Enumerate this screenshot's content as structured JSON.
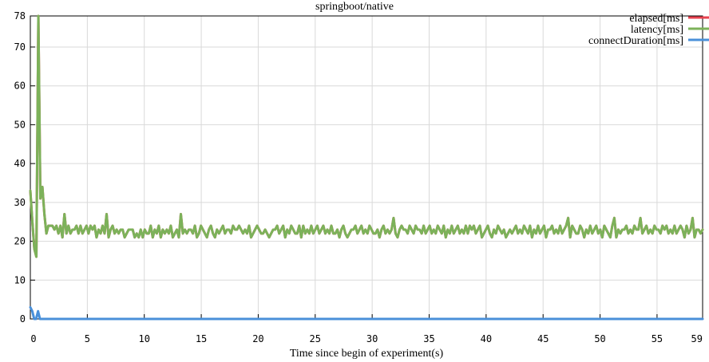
{
  "chart_data": {
    "type": "line",
    "title": "springboot/native",
    "xlabel": "Time since begin of experiment(s)",
    "ylabel": "",
    "xlim": [
      0,
      59
    ],
    "ylim": [
      0,
      78
    ],
    "x_ticks": [
      0,
      5,
      10,
      15,
      20,
      25,
      30,
      35,
      40,
      45,
      50,
      55,
      59
    ],
    "y_ticks": [
      0,
      10,
      20,
      30,
      40,
      50,
      60,
      70,
      78
    ],
    "grid": true,
    "legend_position": "top-right",
    "series": [
      {
        "name": "elapsed[ms]",
        "color": "#e8424f",
        "values": [
          33,
          25,
          18,
          16,
          78,
          31,
          34,
          27,
          22,
          24,
          24,
          24,
          23,
          24,
          22,
          24,
          21,
          27,
          22,
          24,
          22,
          23,
          23,
          24,
          22,
          24,
          22,
          23,
          24,
          22,
          24,
          23,
          24,
          21,
          23,
          22,
          24,
          22,
          27,
          21,
          23,
          24,
          22,
          23,
          22,
          23,
          23,
          21,
          22,
          23,
          23,
          23,
          21,
          22,
          21,
          23,
          21,
          23,
          22,
          22,
          24,
          21,
          23,
          22,
          24,
          21,
          23,
          22,
          23,
          22,
          24,
          21,
          22,
          23,
          21,
          27,
          22,
          23,
          22,
          23,
          23,
          22,
          24,
          21,
          22,
          24,
          23,
          22,
          21,
          23,
          24,
          22,
          21,
          23,
          22,
          23,
          24,
          22,
          23,
          23,
          22,
          24,
          23,
          23,
          24,
          23,
          22,
          23,
          22,
          24,
          21,
          22,
          23,
          24,
          23,
          22,
          22,
          23,
          22,
          21,
          22,
          23,
          23,
          24,
          22,
          23,
          24,
          21,
          23,
          22,
          24,
          23,
          22,
          22,
          24,
          21,
          24,
          22,
          23,
          22,
          24,
          22,
          23,
          24,
          22,
          23,
          24,
          22,
          23,
          22,
          24,
          22,
          22,
          23,
          21,
          23,
          24,
          22,
          21,
          22,
          23,
          23,
          24,
          22,
          23,
          24,
          22,
          23,
          22,
          24,
          23,
          22,
          22,
          23,
          21,
          23,
          24,
          22,
          23,
          22,
          23,
          26,
          22,
          21,
          23,
          24,
          23,
          23,
          22,
          24,
          23,
          22,
          24,
          23,
          23,
          22,
          24,
          22,
          23,
          24,
          22,
          23,
          22,
          24,
          23,
          22,
          24,
          21,
          23,
          22,
          24,
          22,
          23,
          24,
          22,
          23,
          22,
          24,
          22,
          24,
          23,
          24,
          22,
          23,
          24,
          21,
          22,
          23,
          24,
          22,
          21,
          23,
          22,
          24,
          23,
          22,
          23,
          21,
          22,
          23,
          22,
          23,
          24,
          22,
          23,
          22,
          24,
          23,
          22,
          24,
          21,
          23,
          22,
          24,
          22,
          23,
          24,
          21,
          23,
          23,
          24,
          22,
          23,
          22,
          24,
          22,
          23,
          24,
          26,
          21,
          24,
          23,
          22,
          22,
          24,
          23,
          21,
          23,
          22,
          24,
          22,
          23,
          24,
          22,
          23,
          21,
          24,
          23,
          22,
          21,
          24,
          26,
          21,
          23,
          22,
          23,
          23,
          24,
          22,
          23,
          22,
          24,
          23,
          23,
          26,
          22,
          23,
          24,
          22,
          23,
          22,
          24,
          23,
          23,
          22,
          24,
          23,
          24,
          22,
          23,
          22,
          24,
          22,
          23,
          24,
          23,
          21,
          24,
          22,
          23,
          26,
          21,
          23,
          23,
          22,
          23
        ]
      },
      {
        "name": "latency[ms]",
        "color": "#7cb25a",
        "values": [
          33,
          25,
          18,
          16,
          78,
          31,
          34,
          27,
          22,
          24,
          24,
          24,
          23,
          24,
          22,
          24,
          21,
          27,
          22,
          24,
          22,
          23,
          23,
          24,
          22,
          24,
          22,
          23,
          24,
          22,
          24,
          23,
          24,
          21,
          23,
          22,
          24,
          22,
          27,
          21,
          23,
          24,
          22,
          23,
          22,
          23,
          23,
          21,
          22,
          23,
          23,
          23,
          21,
          22,
          21,
          23,
          21,
          23,
          22,
          22,
          24,
          21,
          23,
          22,
          24,
          21,
          23,
          22,
          23,
          22,
          24,
          21,
          22,
          23,
          21,
          27,
          22,
          23,
          22,
          23,
          23,
          22,
          24,
          21,
          22,
          24,
          23,
          22,
          21,
          23,
          24,
          22,
          21,
          23,
          22,
          23,
          24,
          22,
          23,
          23,
          22,
          24,
          23,
          23,
          24,
          23,
          22,
          23,
          22,
          24,
          21,
          22,
          23,
          24,
          23,
          22,
          22,
          23,
          22,
          21,
          22,
          23,
          23,
          24,
          22,
          23,
          24,
          21,
          23,
          22,
          24,
          23,
          22,
          22,
          24,
          21,
          24,
          22,
          23,
          22,
          24,
          22,
          23,
          24,
          22,
          23,
          24,
          22,
          23,
          22,
          24,
          22,
          22,
          23,
          21,
          23,
          24,
          22,
          21,
          22,
          23,
          23,
          24,
          22,
          23,
          24,
          22,
          23,
          22,
          24,
          23,
          22,
          22,
          23,
          21,
          23,
          24,
          22,
          23,
          22,
          23,
          26,
          22,
          21,
          23,
          24,
          23,
          23,
          22,
          24,
          23,
          22,
          24,
          23,
          23,
          22,
          24,
          22,
          23,
          24,
          22,
          23,
          22,
          24,
          23,
          22,
          24,
          21,
          23,
          22,
          24,
          22,
          23,
          24,
          22,
          23,
          22,
          24,
          22,
          24,
          23,
          24,
          22,
          23,
          24,
          21,
          22,
          23,
          24,
          22,
          21,
          23,
          22,
          24,
          23,
          22,
          23,
          21,
          22,
          23,
          22,
          23,
          24,
          22,
          23,
          22,
          24,
          23,
          22,
          24,
          21,
          23,
          22,
          24,
          22,
          23,
          24,
          21,
          23,
          23,
          24,
          22,
          23,
          22,
          24,
          22,
          23,
          24,
          26,
          21,
          24,
          23,
          22,
          22,
          24,
          23,
          21,
          23,
          22,
          24,
          22,
          23,
          24,
          22,
          23,
          21,
          24,
          23,
          22,
          21,
          24,
          26,
          21,
          23,
          22,
          23,
          23,
          24,
          22,
          23,
          22,
          24,
          23,
          23,
          26,
          22,
          23,
          24,
          22,
          23,
          22,
          24,
          23,
          23,
          22,
          24,
          23,
          24,
          22,
          23,
          22,
          24,
          22,
          23,
          24,
          23,
          21,
          24,
          22,
          23,
          26,
          21,
          23,
          23,
          22,
          23
        ]
      },
      {
        "name": "connectDuration[ms]",
        "color": "#4a90d9",
        "values": [
          3,
          2,
          0,
          0,
          2,
          0,
          0,
          0,
          0,
          0,
          0,
          0,
          0,
          0,
          0,
          0,
          0,
          0,
          0,
          0,
          0,
          0,
          0,
          0,
          0,
          0,
          0,
          0,
          0,
          0,
          0,
          0,
          0,
          0,
          0,
          0,
          0,
          0,
          0,
          0,
          0,
          0,
          0,
          0,
          0,
          0,
          0,
          0,
          0,
          0,
          0,
          0,
          0,
          0,
          0,
          0,
          0,
          0,
          0,
          0,
          0,
          0,
          0,
          0,
          0,
          0,
          0,
          0,
          0,
          0,
          0,
          0,
          0,
          0,
          0,
          0,
          0,
          0,
          0,
          0,
          0,
          0,
          0,
          0,
          0,
          0,
          0,
          0,
          0,
          0,
          0,
          0,
          0,
          0,
          0,
          0,
          0,
          0,
          0,
          0,
          0,
          0,
          0,
          0,
          0,
          0,
          0,
          0,
          0,
          0,
          0,
          0,
          0,
          0,
          0,
          0,
          0,
          0,
          0,
          0,
          0,
          0,
          0,
          0,
          0,
          0,
          0,
          0,
          0,
          0,
          0,
          0,
          0,
          0,
          0,
          0,
          0,
          0,
          0,
          0,
          0,
          0,
          0,
          0,
          0,
          0,
          0,
          0,
          0,
          0,
          0,
          0,
          0,
          0,
          0,
          0,
          0,
          0,
          0,
          0,
          0,
          0,
          0,
          0,
          0,
          0,
          0,
          0,
          0,
          0,
          0,
          0,
          0,
          0,
          0,
          0,
          0,
          0,
          0,
          0,
          0,
          0,
          0,
          0,
          0,
          0,
          0,
          0,
          0,
          0,
          0,
          0,
          0,
          0,
          0,
          0,
          0,
          0,
          0,
          0,
          0,
          0,
          0,
          0,
          0,
          0,
          0,
          0,
          0,
          0,
          0,
          0,
          0,
          0,
          0,
          0,
          0,
          0,
          0,
          0,
          0,
          0,
          0,
          0,
          0,
          0,
          0,
          0,
          0,
          0,
          0,
          0,
          0,
          0,
          0,
          0,
          0,
          0,
          0,
          0,
          0,
          0,
          0,
          0,
          0,
          0,
          0,
          0,
          0,
          0,
          0,
          0,
          0,
          0,
          0,
          0,
          0,
          0,
          0,
          0,
          0,
          0,
          0,
          0,
          0,
          0,
          0,
          0,
          0,
          0,
          0,
          0,
          0,
          0,
          0,
          0,
          0,
          0,
          0,
          0,
          0,
          0,
          0,
          0,
          0,
          0,
          0,
          0,
          0,
          0,
          0,
          0,
          0,
          0,
          0,
          0,
          0,
          0,
          0,
          0,
          0,
          0,
          0,
          0,
          0,
          0,
          0,
          0,
          0,
          0,
          0,
          0,
          0,
          0,
          0,
          0,
          0,
          0,
          0,
          0,
          0,
          0,
          0,
          0,
          0,
          0,
          0,
          0,
          0,
          0,
          0,
          0,
          0,
          0,
          0,
          0,
          0,
          0,
          0,
          0,
          0,
          0,
          0,
          0,
          0,
          0,
          0,
          0,
          0,
          0
        ]
      }
    ]
  }
}
